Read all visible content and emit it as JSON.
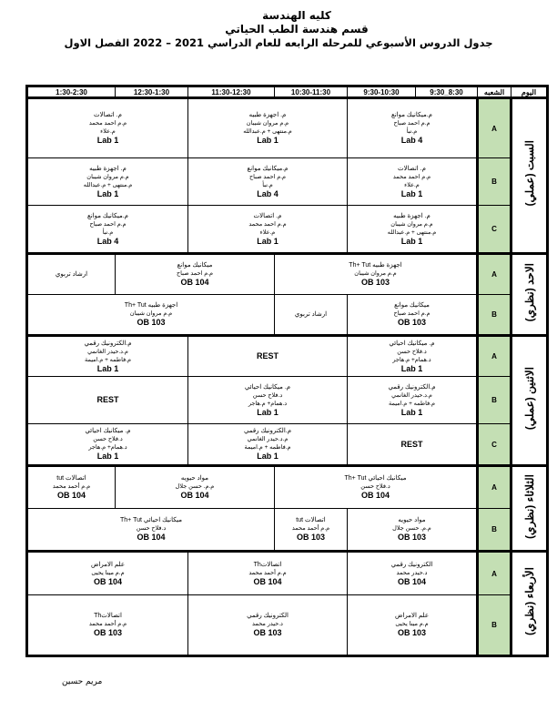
{
  "header": {
    "college": "كليه الهندسة",
    "department": "قسم هندسة الطب الحياتي",
    "schedule_title": "جدول الدروس الأسبوعي للمرحله الرابعه للعام الدراسي 2021 – 2022 الفصل الاول"
  },
  "table": {
    "day_header": "اليوم",
    "section_header": "الشعبه",
    "times": [
      "8:30_9:30",
      "9:30-10:30",
      "10:30-11:30",
      "11:30-12:30",
      "12:30-1:30",
      "1:30-2:30"
    ],
    "section_color": "#c4dfb4",
    "days": [
      {
        "name": "السبت (عملي)",
        "sections": [
          {
            "id": "A",
            "cells": [
              {
                "span": 2,
                "lines": [
                  "م.ميكانيك موانع",
                  "م.م احمد صباح",
                  "م.نبأ"
                ],
                "room": "Lab 4"
              },
              {
                "span": 2,
                "lines": [
                  "م. اجهزة طبيه",
                  "م.م مروان شيبان",
                  "م.منتهى + م.عبدالله"
                ],
                "room": "Lab 1"
              },
              {
                "span": 2,
                "lines": [
                  "م. اتصالات",
                  "م.م احمد محمد",
                  "م.علاء"
                ],
                "room": "Lab 1"
              }
            ]
          },
          {
            "id": "B",
            "cells": [
              {
                "span": 2,
                "lines": [
                  "م. اتصالات",
                  "م.م احمد محمد",
                  "م.علاء"
                ],
                "room": "Lab 1"
              },
              {
                "span": 2,
                "lines": [
                  "م.ميكانيك موانع",
                  "م.م احمد صباح",
                  "م.نبأ"
                ],
                "room": "Lab 4"
              },
              {
                "span": 2,
                "lines": [
                  "م. اجهزة طبيه",
                  "م.م مروان شيبان",
                  "م.منتهى + م.عبدالله"
                ],
                "room": "Lab 1"
              }
            ]
          },
          {
            "id": "C",
            "cells": [
              {
                "span": 2,
                "lines": [
                  "م. اجهزة طبيه",
                  "م.م مروان شيبان",
                  "م.منتهى + م.عبدالله"
                ],
                "room": "Lab 1"
              },
              {
                "span": 2,
                "lines": [
                  "م. اتصالات",
                  "م.م احمد محمد",
                  "م.علاء"
                ],
                "room": "Lab 1"
              },
              {
                "span": 2,
                "lines": [
                  "م.ميكانيك موانع",
                  "م.م احمد صباح",
                  "م.نبأ"
                ],
                "room": "Lab 4"
              }
            ]
          }
        ]
      },
      {
        "name": "الاحد (نظري)",
        "sections": [
          {
            "id": "A",
            "cells": [
              {
                "span": 3,
                "lines": [
                  "اجهزة طبيه Th+ Tut",
                  "م.م مروان شيبان"
                ],
                "room": "OB 103"
              },
              {
                "span": 2,
                "lines": [
                  "ميكانيك موانع",
                  "م.م احمد صباح"
                ],
                "room": "OB 104"
              },
              {
                "span": 1,
                "lines": [
                  "ارشاد تربوي"
                ],
                "room": ""
              }
            ]
          },
          {
            "id": "B",
            "cells": [
              {
                "span": 2,
                "lines": [
                  "ميكانيك موانع",
                  "م.م احمد صباح"
                ],
                "room": "OB 103"
              },
              {
                "span": 1,
                "lines": [
                  "ارشاد تربوي"
                ],
                "room": ""
              },
              {
                "span": 3,
                "lines": [
                  "اجهزة طبيه Th+ Tut",
                  "م.م مروان شيبان"
                ],
                "room": "OB 103"
              }
            ]
          }
        ]
      },
      {
        "name": "الاثنين (عملي)",
        "sections": [
          {
            "id": "A",
            "cells": [
              {
                "span": 2,
                "lines": [
                  "م. ميكانيك احيائي",
                  "د.فلاح حسن",
                  "د.همام+ م.هاجر"
                ],
                "room": "Lab 1"
              },
              {
                "span": 2,
                "lines": [],
                "room": "REST"
              },
              {
                "span": 2,
                "lines": [
                  "م.الكترونيك رقمي",
                  "م.د.حيدر الغانمي",
                  "م.فاطمه + م.اميمة"
                ],
                "room": "Lab 1"
              }
            ]
          },
          {
            "id": "B",
            "cells": [
              {
                "span": 2,
                "lines": [
                  "م.الكترونيك رقمي",
                  "م.د.حيدر الغانمي",
                  "م.فاطمه + م.اميمة"
                ],
                "room": "Lab 1"
              },
              {
                "span": 2,
                "lines": [
                  "م. ميكانيك احيائي",
                  "د.فلاح حسن",
                  "د.همام+ م.هاجر"
                ],
                "room": "Lab 1"
              },
              {
                "span": 2,
                "lines": [],
                "room": "REST"
              }
            ]
          },
          {
            "id": "C",
            "cells": [
              {
                "span": 2,
                "lines": [],
                "room": "REST"
              },
              {
                "span": 2,
                "lines": [
                  "م.الكترونيك رقمي",
                  "م.د.حيدر الغانمي",
                  "م.فاطمه + م.اميمة"
                ],
                "room": "Lab 1"
              },
              {
                "span": 2,
                "lines": [
                  "م. ميكانيك احيائي",
                  "د.فلاح حسن",
                  "د.همام+ م.هاجر"
                ],
                "room": "Lab 1"
              }
            ]
          }
        ]
      },
      {
        "name": "الثلاثاء (نظري)",
        "sections": [
          {
            "id": "A",
            "cells": [
              {
                "span": 3,
                "lines": [
                  "ميكانيك احيائي Th+ Tut",
                  "د.فلاح حسن"
                ],
                "room": "OB 104"
              },
              {
                "span": 2,
                "lines": [
                  "مواد حيويه",
                  "م.م. حسن جلال"
                ],
                "room": "OB 104"
              },
              {
                "span": 1,
                "lines": [
                  "اتصالات tut",
                  "م.م أحمد محمد"
                ],
                "room": "OB 104"
              }
            ]
          },
          {
            "id": "B",
            "cells": [
              {
                "span": 2,
                "lines": [
                  "مواد حيويه",
                  "م.م. حسن جلال"
                ],
                "room": "OB 103"
              },
              {
                "span": 1,
                "lines": [
                  "اتصالات tut",
                  "م.م أحمد محمد"
                ],
                "room": "OB 103"
              },
              {
                "span": 3,
                "lines": [
                  "ميكانيك احيائي Th+ Tut",
                  "د.فلاح حسن"
                ],
                "room": "OB 104"
              }
            ]
          }
        ]
      },
      {
        "name": "الأربعاء (نظري)",
        "sections": [
          {
            "id": "A",
            "cells": [
              {
                "span": 2,
                "lines": [
                  "الكترونيك رقمي",
                  "د.حيدر محمد"
                ],
                "room": "OB 104"
              },
              {
                "span": 2,
                "lines": [
                  "اتصالاتTh",
                  "م.م أحمد محمد"
                ],
                "room": "OB 104"
              },
              {
                "span": 2,
                "lines": [
                  "علم الامراض",
                  "م.م مينا يحيى"
                ],
                "room": "OB 104"
              }
            ]
          },
          {
            "id": "B",
            "cells": [
              {
                "span": 2,
                "lines": [
                  "علم الامراض",
                  "م.م مينا يحيى"
                ],
                "room": "OB 103"
              },
              {
                "span": 2,
                "lines": [
                  "الكترونيك رقمي",
                  "د.حيدر محمد"
                ],
                "room": "OB 103"
              },
              {
                "span": 2,
                "lines": [
                  "اتصالاتTh",
                  "م.م أحمد محمد"
                ],
                "room": "OB 103"
              }
            ]
          }
        ]
      }
    ]
  },
  "footer": {
    "signature": "مريم حسين"
  }
}
